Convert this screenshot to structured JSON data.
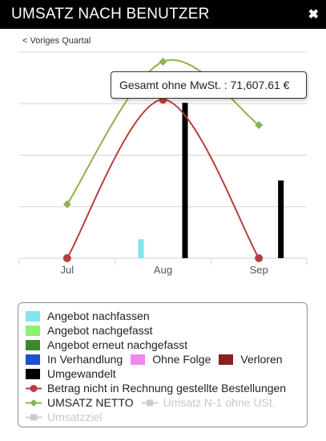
{
  "header": {
    "title": "UMSATZ NACH BENUTZER"
  },
  "nav": {
    "back_label": "< Voriges Quartal"
  },
  "tooltip": {
    "text": "Gesamt ohne MwSt. : 71,607.61 €"
  },
  "colors": {
    "angebot_nachfassen": "#7fe5ef",
    "angebot_nachgefasst": "#90ee70",
    "angebot_erneut_nachgefasst": "#3a8a2a",
    "in_verhandlung": "#1f4fd1",
    "ohne_folge": "#ee88ee",
    "verloren": "#8b1f22",
    "umgewandelt": "#000000",
    "betrag_line": "#b93c3c",
    "umsatz_netto_line": "#8fb24e",
    "inactive": "#cccccc"
  },
  "chart_data": {
    "type": "bar",
    "categories": [
      "Jul",
      "Aug",
      "Sep"
    ],
    "series": [
      {
        "name": "Angebot nachfassen",
        "kind": "bar",
        "values": [
          0,
          12,
          0
        ]
      },
      {
        "name": "Umgewandelt",
        "kind": "bar",
        "values": [
          0,
          98,
          49
        ]
      },
      {
        "name": "Betrag nicht in Rechnung gestellte Bestellungen",
        "kind": "line",
        "values": [
          0,
          100,
          0
        ]
      },
      {
        "name": "UMSATZ NETTO",
        "kind": "line",
        "values": [
          34,
          124,
          84
        ]
      }
    ],
    "ylim": [
      0,
      130
    ],
    "grid": true,
    "legend_position": "bottom"
  },
  "legend": {
    "items": [
      {
        "label": "Angebot nachfassen",
        "color": "#7fe5ef",
        "kind": "box",
        "active": true
      },
      {
        "label": "Angebot nachgefasst",
        "color": "#90ee70",
        "kind": "box",
        "active": true
      },
      {
        "label": "Angebot erneut nachgefasst",
        "color": "#3a8a2a",
        "kind": "box",
        "active": true
      },
      {
        "label": "In Verhandlung",
        "color": "#1f4fd1",
        "kind": "box",
        "active": true
      },
      {
        "label": "Ohne Folge",
        "color": "#ee88ee",
        "kind": "box",
        "active": true
      },
      {
        "label": "Verloren",
        "color": "#8b1f22",
        "kind": "box",
        "active": true
      },
      {
        "label": "Umgewandelt",
        "color": "#000000",
        "kind": "box",
        "active": true
      },
      {
        "label": "Betrag nicht in Rechnung gestellte Bestellungen",
        "color": "#b93c3c",
        "kind": "line-circle",
        "active": true
      },
      {
        "label": "UMSATZ NETTO",
        "color": "#8fb24e",
        "kind": "line-diamond",
        "active": true
      },
      {
        "label": "Umsatz N-1 ohne USt.",
        "color": "#cccccc",
        "kind": "line-square",
        "active": false
      },
      {
        "label": "Umsatzziel",
        "color": "#cccccc",
        "kind": "line-square",
        "active": false
      }
    ]
  }
}
